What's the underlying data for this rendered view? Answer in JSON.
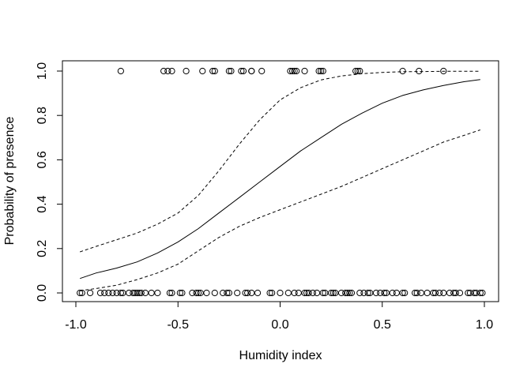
{
  "chart_data": {
    "type": "scatter",
    "title": "",
    "xlabel": "Humidity index",
    "ylabel": "Probability of presence",
    "xlim": [
      -1.0,
      1.0
    ],
    "ylim": [
      0.0,
      1.0
    ],
    "x_ticks": [
      -1.0,
      -0.5,
      0.0,
      0.5,
      1.0
    ],
    "x_tick_labels": [
      "-1.0",
      "-0.5",
      "0.0",
      "0.5",
      "1.0"
    ],
    "y_ticks": [
      0.0,
      0.2,
      0.4,
      0.6,
      0.8,
      1.0
    ],
    "y_tick_labels": [
      "0.0",
      "0.2",
      "0.4",
      "0.6",
      "0.8",
      "1.0"
    ],
    "grid": false,
    "observations": {
      "present_y": 1,
      "present_x": [
        -0.78,
        -0.57,
        -0.55,
        -0.53,
        -0.46,
        -0.38,
        -0.33,
        -0.32,
        -0.25,
        -0.24,
        -0.19,
        -0.18,
        -0.14,
        -0.14,
        -0.09,
        0.05,
        0.06,
        0.07,
        0.08,
        0.12,
        0.19,
        0.2,
        0.21,
        0.37,
        0.38,
        0.39,
        0.6,
        0.68,
        0.8
      ],
      "absent_y": 0,
      "absent_x": [
        -0.98,
        -0.97,
        -0.93,
        -0.88,
        -0.86,
        -0.84,
        -0.82,
        -0.8,
        -0.78,
        -0.77,
        -0.74,
        -0.72,
        -0.71,
        -0.7,
        -0.69,
        -0.68,
        -0.66,
        -0.63,
        -0.6,
        -0.54,
        -0.53,
        -0.49,
        -0.48,
        -0.43,
        -0.41,
        -0.4,
        -0.39,
        -0.36,
        -0.32,
        -0.28,
        -0.26,
        -0.25,
        -0.21,
        -0.17,
        -0.16,
        -0.14,
        -0.11,
        -0.05,
        -0.04,
        0.0,
        0.04,
        0.07,
        0.09,
        0.12,
        0.13,
        0.14,
        0.16,
        0.18,
        0.21,
        0.22,
        0.25,
        0.26,
        0.27,
        0.3,
        0.32,
        0.33,
        0.34,
        0.35,
        0.39,
        0.41,
        0.43,
        0.44,
        0.47,
        0.49,
        0.51,
        0.52,
        0.55,
        0.57,
        0.6,
        0.61,
        0.66,
        0.67,
        0.69,
        0.72,
        0.75,
        0.76,
        0.78,
        0.8,
        0.83,
        0.85,
        0.86,
        0.88,
        0.92,
        0.93,
        0.95,
        0.96,
        0.98,
        0.99
      ]
    },
    "series": [
      {
        "style": "solid",
        "x": [
          -0.98,
          -0.9,
          -0.8,
          -0.7,
          -0.6,
          -0.5,
          -0.4,
          -0.3,
          -0.2,
          -0.1,
          0.0,
          0.1,
          0.2,
          0.3,
          0.4,
          0.5,
          0.6,
          0.7,
          0.8,
          0.9,
          0.98
        ],
        "y": [
          0.065,
          0.09,
          0.112,
          0.14,
          0.18,
          0.23,
          0.29,
          0.36,
          0.43,
          0.5,
          0.57,
          0.64,
          0.7,
          0.76,
          0.81,
          0.855,
          0.89,
          0.915,
          0.935,
          0.952,
          0.962
        ]
      },
      {
        "style": "dashed",
        "x": [
          -0.98,
          -0.9,
          -0.8,
          -0.7,
          -0.6,
          -0.5,
          -0.4,
          -0.3,
          -0.2,
          -0.1,
          0.0,
          0.1,
          0.2,
          0.3,
          0.4,
          0.5,
          0.6,
          0.7,
          0.8,
          0.9,
          0.98
        ],
        "y": [
          0.185,
          0.21,
          0.24,
          0.27,
          0.31,
          0.36,
          0.44,
          0.55,
          0.67,
          0.78,
          0.87,
          0.925,
          0.96,
          0.978,
          0.988,
          0.994,
          0.997,
          0.998,
          0.999,
          0.999,
          0.999
        ]
      },
      {
        "style": "dashed",
        "x": [
          -0.98,
          -0.9,
          -0.8,
          -0.7,
          -0.6,
          -0.5,
          -0.4,
          -0.3,
          -0.2,
          -0.1,
          0.0,
          0.1,
          0.2,
          0.3,
          0.4,
          0.5,
          0.6,
          0.7,
          0.8,
          0.9,
          0.98
        ],
        "y": [
          0.01,
          0.02,
          0.035,
          0.06,
          0.09,
          0.13,
          0.19,
          0.25,
          0.3,
          0.34,
          0.375,
          0.41,
          0.445,
          0.48,
          0.52,
          0.56,
          0.6,
          0.64,
          0.68,
          0.71,
          0.735
        ]
      }
    ]
  }
}
